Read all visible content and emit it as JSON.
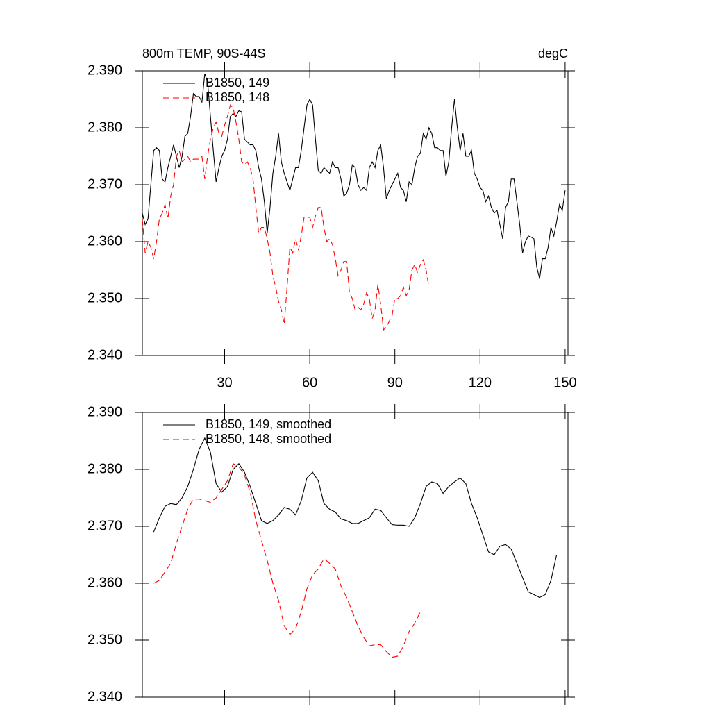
{
  "chart_data": [
    {
      "type": "line",
      "title": "800m TEMP, 90S-44S",
      "subtitle": "degC",
      "xlim": [
        1,
        151
      ],
      "xticks": [
        30,
        60,
        90,
        120,
        150
      ],
      "xtick_labels": true,
      "ylim": [
        2.34,
        2.39
      ],
      "yticks": [
        {
          "value": 2.34,
          "label": "2.340"
        },
        {
          "value": 2.35,
          "label": "2.350"
        },
        {
          "value": 2.36,
          "label": "2.360"
        },
        {
          "value": 2.37,
          "label": "2.370"
        },
        {
          "value": 2.38,
          "label": "2.380"
        },
        {
          "value": 2.39,
          "label": "2.390"
        }
      ],
      "legend": "upper left",
      "series": [
        {
          "name": "B1850, 149",
          "color": "#000000",
          "line_style": "solid",
          "x": [
            1,
            2,
            3,
            4,
            5,
            6,
            7,
            8,
            9,
            10,
            11,
            12,
            13,
            14,
            15,
            16,
            17,
            18,
            19,
            20,
            21,
            22,
            23,
            24,
            25,
            26,
            27,
            28,
            29,
            30,
            31,
            32,
            33,
            34,
            35,
            36,
            37,
            38,
            39,
            40,
            41,
            42,
            43,
            44,
            45,
            46,
            47,
            48,
            49,
            50,
            51,
            52,
            53,
            54,
            55,
            56,
            57,
            58,
            59,
            60,
            61,
            62,
            63,
            64,
            65,
            66,
            67,
            68,
            69,
            70,
            71,
            72,
            73,
            74,
            75,
            76,
            77,
            78,
            79,
            80,
            81,
            82,
            83,
            84,
            85,
            86,
            87,
            88,
            89,
            90,
            91,
            92,
            93,
            94,
            95,
            96,
            97,
            98,
            99,
            100,
            101,
            102,
            103,
            104,
            105,
            106,
            107,
            108,
            109,
            110,
            111,
            112,
            113,
            114,
            115,
            116,
            117,
            118,
            119,
            120,
            121,
            122,
            123,
            124,
            125,
            126,
            127,
            128,
            129,
            130,
            131,
            132,
            133,
            134,
            135,
            136,
            137,
            138,
            139,
            140,
            141,
            142,
            143,
            144,
            145,
            146,
            147,
            148,
            149,
            150
          ],
          "values": [
            2.365,
            2.363,
            2.364,
            2.37,
            2.376,
            2.3765,
            2.376,
            2.371,
            2.3705,
            2.373,
            2.375,
            2.377,
            2.375,
            2.373,
            2.375,
            2.3785,
            2.379,
            2.382,
            2.386,
            2.3855,
            2.3855,
            2.3845,
            2.3895,
            2.388,
            2.382,
            2.376,
            2.3705,
            2.373,
            2.375,
            2.376,
            2.378,
            2.382,
            2.3825,
            2.382,
            2.383,
            2.3828,
            2.378,
            2.3775,
            2.377,
            2.377,
            2.376,
            2.373,
            2.371,
            2.367,
            2.3615,
            2.366,
            2.372,
            2.375,
            2.379,
            2.374,
            2.372,
            2.3705,
            2.369,
            2.371,
            2.373,
            2.373,
            2.376,
            2.38,
            2.384,
            2.385,
            2.384,
            2.378,
            2.3725,
            2.372,
            2.373,
            2.3725,
            2.372,
            2.374,
            2.373,
            2.373,
            2.371,
            2.368,
            2.3685,
            2.37,
            2.3735,
            2.373,
            2.37,
            2.369,
            2.3695,
            2.369,
            2.373,
            2.374,
            2.373,
            2.376,
            2.377,
            2.373,
            2.3675,
            2.369,
            2.37,
            2.371,
            2.372,
            2.3695,
            2.369,
            2.367,
            2.3705,
            2.37,
            2.373,
            2.375,
            2.3755,
            2.379,
            2.378,
            2.38,
            2.379,
            2.3765,
            2.3765,
            2.376,
            2.376,
            2.3715,
            2.374,
            2.38,
            2.385,
            2.38,
            2.376,
            2.379,
            2.375,
            2.375,
            2.376,
            2.372,
            2.371,
            2.3695,
            2.369,
            2.367,
            2.368,
            2.366,
            2.365,
            2.3655,
            2.363,
            2.3605,
            2.366,
            2.367,
            2.371,
            2.371,
            2.367,
            2.363,
            2.358,
            2.36,
            2.361,
            2.3608,
            2.3605,
            2.3555,
            2.3535,
            2.357,
            2.357,
            2.359,
            2.3625,
            2.361,
            2.3635,
            2.3665,
            2.3655,
            2.369
          ]
        },
        {
          "name": "B1850, 148",
          "color": "#ff0000",
          "line_style": "dashed",
          "x": [
            1,
            2,
            3,
            4,
            5,
            6,
            7,
            8,
            9,
            10,
            11,
            12,
            13,
            14,
            15,
            16,
            17,
            18,
            19,
            20,
            21,
            22,
            23,
            24,
            25,
            26,
            27,
            28,
            29,
            30,
            31,
            32,
            33,
            34,
            35,
            36,
            37,
            38,
            39,
            40,
            41,
            42,
            43,
            44,
            45,
            46,
            47,
            48,
            49,
            50,
            51,
            52,
            53,
            54,
            55,
            56,
            57,
            58,
            59,
            60,
            61,
            62,
            63,
            64,
            65,
            66,
            67,
            68,
            69,
            70,
            71,
            72,
            73,
            74,
            75,
            76,
            77,
            78,
            79,
            80,
            81,
            82,
            83,
            84,
            85,
            86,
            87,
            88,
            89,
            90,
            91,
            92,
            93,
            94,
            95,
            96,
            97,
            98,
            99,
            100,
            101,
            102
          ],
          "values": [
            2.364,
            2.358,
            2.36,
            2.359,
            2.357,
            2.36,
            2.364,
            2.365,
            2.3665,
            2.364,
            2.368,
            2.37,
            2.375,
            2.376,
            2.374,
            2.3745,
            2.375,
            2.374,
            2.3745,
            2.3745,
            2.3745,
            2.375,
            2.371,
            2.375,
            2.378,
            2.38,
            2.381,
            2.379,
            2.3785,
            2.3805,
            2.382,
            2.384,
            2.3835,
            2.381,
            2.378,
            2.374,
            2.3735,
            2.374,
            2.373,
            2.371,
            2.366,
            2.3615,
            2.3625,
            2.3625,
            2.3605,
            2.358,
            2.354,
            2.352,
            2.3495,
            2.348,
            2.3455,
            2.352,
            2.359,
            2.358,
            2.3605,
            2.3585,
            2.361,
            2.3643,
            2.3642,
            2.3643,
            2.3625,
            2.3645,
            2.366,
            2.366,
            2.3625,
            2.36,
            2.3605,
            2.3595,
            2.357,
            2.354,
            2.355,
            2.3565,
            2.3565,
            2.351,
            2.35,
            2.348,
            2.3485,
            2.348,
            2.349,
            2.351,
            2.35,
            2.3465,
            2.348,
            2.3525,
            2.349,
            2.3445,
            2.345,
            2.346,
            2.347,
            2.35,
            2.35,
            2.3505,
            2.352,
            2.3505,
            2.3515,
            2.355,
            2.356,
            2.3545,
            2.356,
            2.3568,
            2.355,
            2.352
          ]
        }
      ]
    },
    {
      "type": "line",
      "xlim": [
        1,
        151
      ],
      "xticks": [
        30,
        60,
        90,
        120,
        150
      ],
      "xtick_labels": false,
      "ylim": [
        2.34,
        2.39
      ],
      "yticks": [
        {
          "value": 2.34,
          "label": "2.340"
        },
        {
          "value": 2.35,
          "label": "2.350"
        },
        {
          "value": 2.36,
          "label": "2.360"
        },
        {
          "value": 2.37,
          "label": "2.370"
        },
        {
          "value": 2.38,
          "label": "2.380"
        },
        {
          "value": 2.39,
          "label": "2.390"
        }
      ],
      "legend": "upper left",
      "series": [
        {
          "name": "B1850, 149, smoothed",
          "color": "#000000",
          "line_style": "solid",
          "x": [
            5,
            7,
            9,
            11,
            13,
            15,
            17,
            19,
            21,
            23,
            25,
            27,
            29,
            31,
            33,
            35,
            37,
            39,
            41,
            43,
            45,
            47,
            49,
            51,
            53,
            55,
            57,
            59,
            61,
            63,
            65,
            67,
            69,
            71,
            73,
            75,
            77,
            79,
            81,
            83,
            85,
            87,
            89,
            91,
            93,
            95,
            97,
            99,
            101,
            103,
            105,
            107,
            109,
            111,
            113,
            115,
            117,
            119,
            121,
            123,
            125,
            127,
            129,
            131,
            133,
            135,
            137,
            139,
            141,
            143,
            145,
            147
          ],
          "values": [
            2.369,
            2.3715,
            2.3735,
            2.374,
            2.3738,
            2.375,
            2.377,
            2.38,
            2.3835,
            2.3855,
            2.383,
            2.3775,
            2.376,
            2.377,
            2.38,
            2.381,
            2.3795,
            2.377,
            2.374,
            2.371,
            2.3705,
            2.371,
            2.372,
            2.3733,
            2.373,
            2.372,
            2.3745,
            2.3785,
            2.3795,
            2.378,
            2.374,
            2.373,
            2.3725,
            2.3713,
            2.371,
            2.3705,
            2.3705,
            2.371,
            2.3715,
            2.373,
            2.3728,
            2.3715,
            2.3703,
            2.3702,
            2.3702,
            2.37,
            2.3715,
            2.374,
            2.377,
            2.3778,
            2.3775,
            2.3758,
            2.377,
            2.3778,
            2.3785,
            2.3775,
            2.374,
            2.3715,
            2.3685,
            2.3655,
            2.365,
            2.3665,
            2.3668,
            2.366,
            2.3635,
            2.361,
            2.3585,
            2.358,
            2.3575,
            2.358,
            2.3605,
            2.365
          ]
        },
        {
          "name": "B1850, 148, smoothed",
          "color": "#ff0000",
          "line_style": "dashed",
          "x": [
            5,
            7,
            9,
            11,
            13,
            15,
            17,
            19,
            21,
            23,
            25,
            27,
            29,
            31,
            33,
            35,
            37,
            39,
            41,
            43,
            45,
            47,
            49,
            51,
            53,
            55,
            57,
            59,
            61,
            63,
            65,
            67,
            69,
            71,
            73,
            75,
            77,
            79,
            81,
            83,
            85,
            87,
            89,
            91,
            93,
            95,
            97,
            99
          ],
          "values": [
            2.36,
            2.3605,
            2.362,
            2.3635,
            2.367,
            2.37,
            2.373,
            2.3748,
            2.3748,
            2.3745,
            2.3742,
            2.375,
            2.3765,
            2.378,
            2.381,
            2.3805,
            2.379,
            2.376,
            2.371,
            2.3675,
            2.364,
            2.36,
            2.357,
            2.3525,
            2.351,
            2.352,
            2.355,
            2.359,
            2.3615,
            2.3625,
            2.3643,
            2.3635,
            2.3625,
            2.3595,
            2.3575,
            2.355,
            2.3525,
            2.3505,
            2.349,
            2.3492,
            2.3492,
            2.348,
            2.347,
            2.3472,
            2.349,
            2.3515,
            2.353,
            2.355
          ]
        }
      ]
    }
  ]
}
